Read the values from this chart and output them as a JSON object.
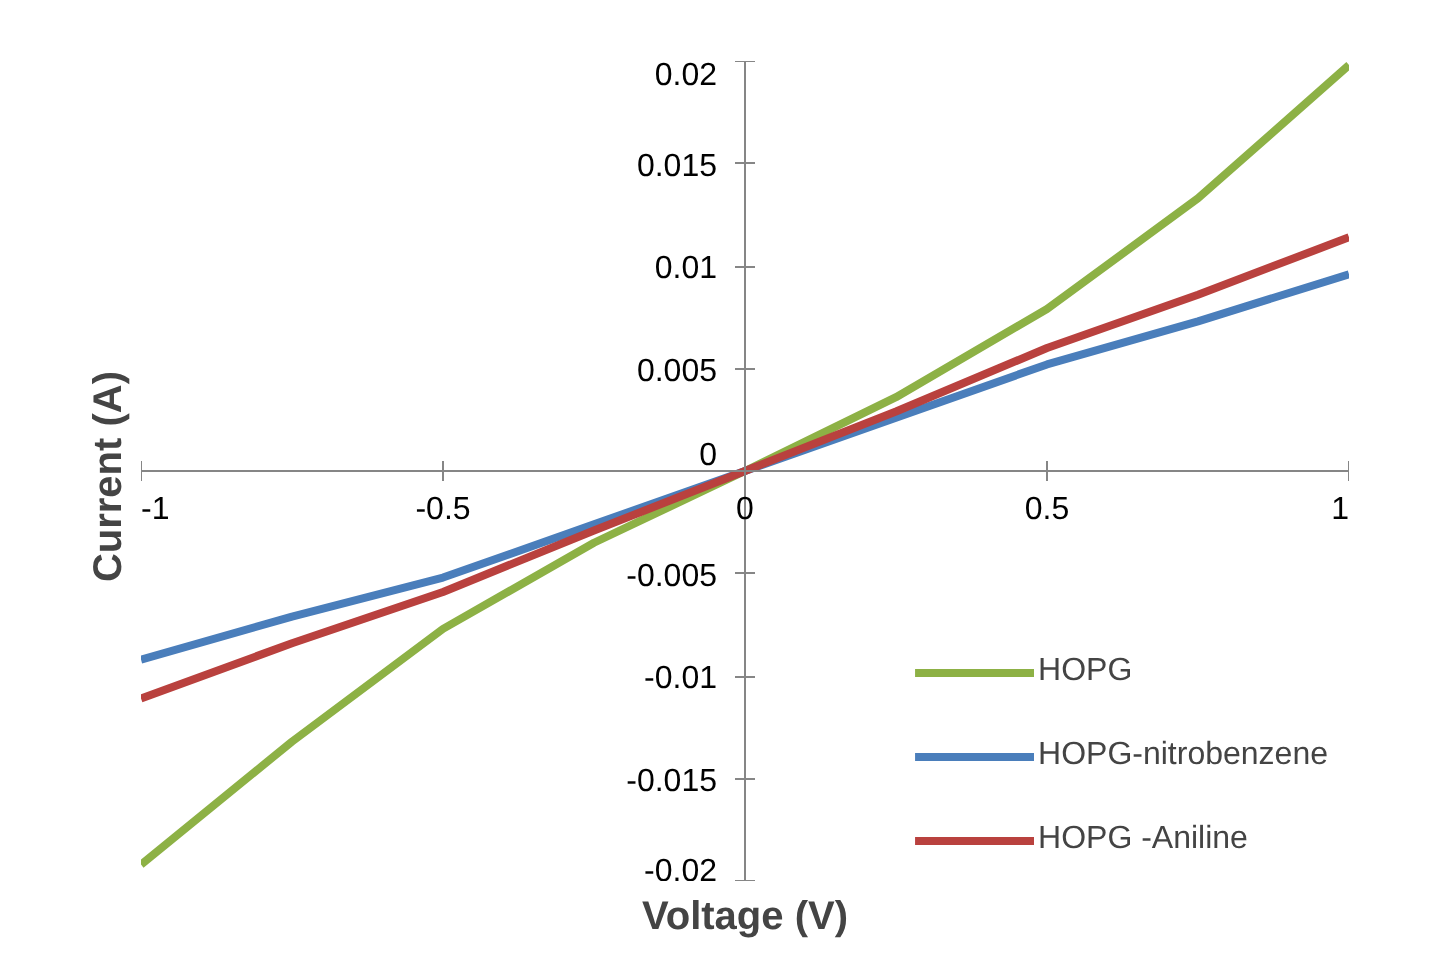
{
  "chart_data": {
    "type": "line",
    "xlabel": "Voltage (V)",
    "ylabel": "Current  (A)",
    "x": [
      -1,
      -0.75,
      -0.5,
      -0.25,
      0,
      0.25,
      0.5,
      0.75,
      1
    ],
    "series": [
      {
        "name": "HOPG",
        "color": "#8db145",
        "values": [
          -0.0192,
          -0.0132,
          -0.0077,
          -0.0035,
          0,
          0.0036,
          0.0079,
          0.0133,
          0.0198
        ]
      },
      {
        "name": "HOPG-nitrobenzene",
        "color": "#4a7ebb",
        "values": [
          -0.0092,
          -0.0071,
          -0.0052,
          -0.0026,
          0,
          0.0026,
          0.0052,
          0.0073,
          0.0096
        ]
      },
      {
        "name": "HOPG -Aniline",
        "color": "#b9413e",
        "values": [
          -0.0111,
          -0.0084,
          -0.0059,
          -0.0029,
          0,
          0.0029,
          0.006,
          0.0086,
          0.0114
        ]
      }
    ],
    "xlim": [
      -1,
      1
    ],
    "ylim": [
      -0.02,
      0.02
    ],
    "xticks": [
      -1,
      -0.5,
      0,
      0.5,
      1
    ],
    "yticks": [
      -0.02,
      -0.015,
      -0.01,
      -0.005,
      0,
      0.005,
      0.01,
      0.015,
      0.02
    ],
    "grid": false,
    "legend": "bottom right",
    "marker": "none",
    "line_style": "solid"
  }
}
